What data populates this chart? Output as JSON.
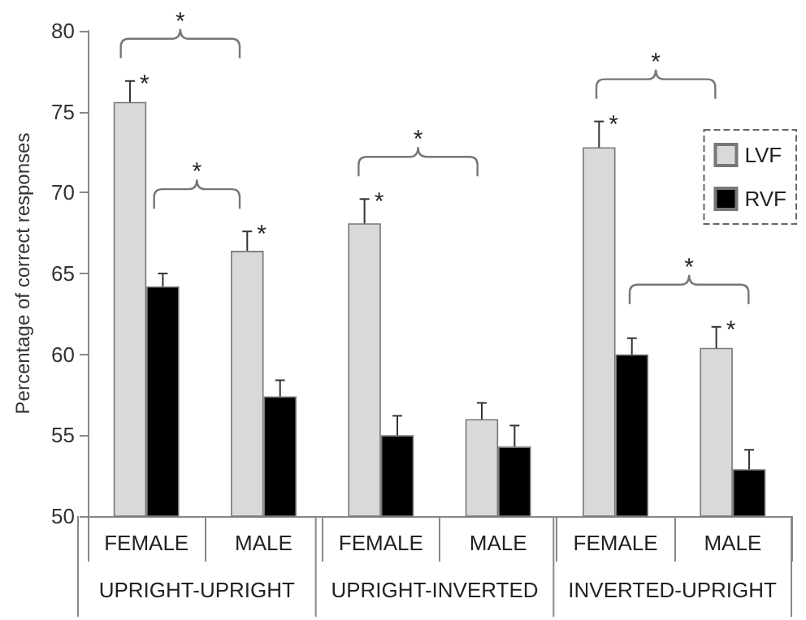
{
  "chart_data": {
    "type": "bar",
    "ylabel": "Percentage of correct responses",
    "categories": [
      "FEMALE",
      "MALE",
      "FEMALE",
      "MALE",
      "FEMALE",
      "MALE"
    ],
    "series": [
      {
        "name": "LVF",
        "color": "#d9d9d9",
        "values": [
          75.6,
          66.4,
          68.1,
          56.0,
          72.8,
          60.4
        ],
        "errors": [
          1.3,
          1.2,
          1.5,
          1.0,
          1.6,
          1.3
        ],
        "value_labels": [
          "*",
          "*",
          "*",
          null,
          "*",
          "*"
        ]
      },
      {
        "name": "RVF",
        "color": "#000000",
        "values": [
          64.2,
          57.4,
          55.0,
          54.3,
          60.0,
          52.9
        ],
        "errors": [
          0.8,
          1.0,
          1.2,
          1.3,
          1.0,
          1.2
        ]
      }
    ],
    "ylim": [
      50,
      80
    ],
    "yticks": [
      50,
      55,
      60,
      65,
      70,
      75,
      80
    ],
    "annotations": [
      "UPRIGHT-UPRIGHT",
      "UPRIGHT-INVERTED",
      "INVERTED-UPRIGHT",
      "*",
      "*",
      "*",
      "*",
      "*"
    ],
    "grid": false,
    "legend": "top right"
  }
}
